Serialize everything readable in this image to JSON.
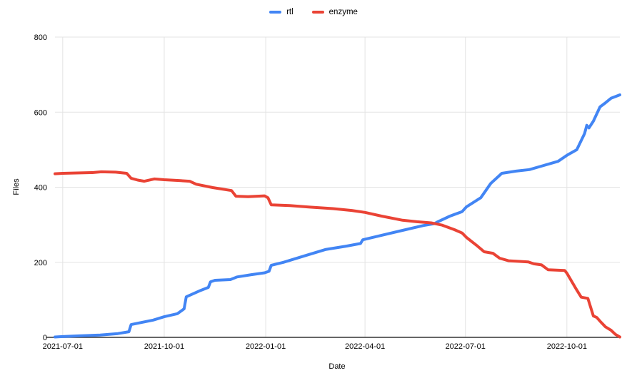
{
  "chart_data": {
    "type": "line",
    "title": "",
    "xlabel": "Date",
    "ylabel": "Files",
    "ylim": [
      0,
      800
    ],
    "y_ticks": [
      0,
      200,
      400,
      600,
      800
    ],
    "x_ticks": [
      "2021-07-01",
      "2021-10-01",
      "2022-01-01",
      "2022-04-01",
      "2022-07-01",
      "2022-10-01"
    ],
    "x_domain": [
      "2021-06-24",
      "2022-11-18"
    ],
    "grid": true,
    "legend_position": "top",
    "colors": {
      "gridline": "#e3e3e3",
      "axis_line": "#333333",
      "text": "#000000",
      "background": "#ffffff"
    },
    "series": [
      {
        "name": "rtl",
        "color": "#4285f4",
        "points": [
          [
            "2021-06-24",
            1
          ],
          [
            "2021-07-01",
            2
          ],
          [
            "2021-07-16",
            4
          ],
          [
            "2021-08-04",
            6
          ],
          [
            "2021-08-20",
            10
          ],
          [
            "2021-08-30",
            15
          ],
          [
            "2021-09-01",
            34
          ],
          [
            "2021-09-11",
            40
          ],
          [
            "2021-09-21",
            46
          ],
          [
            "2021-10-01",
            55
          ],
          [
            "2021-10-13",
            63
          ],
          [
            "2021-10-19",
            76
          ],
          [
            "2021-10-21",
            108
          ],
          [
            "2021-11-03",
            125
          ],
          [
            "2021-11-10",
            133
          ],
          [
            "2021-11-12",
            148
          ],
          [
            "2021-11-16",
            152
          ],
          [
            "2021-11-30",
            154
          ],
          [
            "2021-12-06",
            161
          ],
          [
            "2021-12-19",
            167
          ],
          [
            "2021-12-31",
            172
          ],
          [
            "2022-01-04",
            176
          ],
          [
            "2022-01-06",
            192
          ],
          [
            "2022-01-17",
            200
          ],
          [
            "2022-02-05",
            217
          ],
          [
            "2022-02-24",
            234
          ],
          [
            "2022-03-15",
            243
          ],
          [
            "2022-03-28",
            250
          ],
          [
            "2022-03-30",
            260
          ],
          [
            "2022-04-16",
            272
          ],
          [
            "2022-05-05",
            285
          ],
          [
            "2022-05-24",
            298
          ],
          [
            "2022-06-03",
            303
          ],
          [
            "2022-06-06",
            308
          ],
          [
            "2022-06-17",
            323
          ],
          [
            "2022-06-28",
            335
          ],
          [
            "2022-07-02",
            348
          ],
          [
            "2022-07-15",
            372
          ],
          [
            "2022-07-24",
            410
          ],
          [
            "2022-08-03",
            437
          ],
          [
            "2022-08-16",
            443
          ],
          [
            "2022-08-28",
            447
          ],
          [
            "2022-09-10",
            458
          ],
          [
            "2022-09-23",
            469
          ],
          [
            "2022-10-01",
            485
          ],
          [
            "2022-10-10",
            500
          ],
          [
            "2022-10-17",
            543
          ],
          [
            "2022-10-19",
            565
          ],
          [
            "2022-10-21",
            558
          ],
          [
            "2022-10-25",
            576
          ],
          [
            "2022-10-31",
            614
          ],
          [
            "2022-11-05",
            625
          ],
          [
            "2022-11-10",
            637
          ],
          [
            "2022-11-18",
            646
          ]
        ]
      },
      {
        "name": "enzyme",
        "color": "#ea4335",
        "points": [
          [
            "2021-06-24",
            436
          ],
          [
            "2021-07-01",
            437
          ],
          [
            "2021-07-28",
            439
          ],
          [
            "2021-08-05",
            441
          ],
          [
            "2021-08-18",
            440
          ],
          [
            "2021-08-28",
            437
          ],
          [
            "2021-09-01",
            424
          ],
          [
            "2021-09-07",
            419
          ],
          [
            "2021-09-13",
            416
          ],
          [
            "2021-09-22",
            422
          ],
          [
            "2021-10-01",
            420
          ],
          [
            "2021-10-13",
            418
          ],
          [
            "2021-10-24",
            416
          ],
          [
            "2021-10-30",
            408
          ],
          [
            "2021-11-14",
            399
          ],
          [
            "2021-12-01",
            391
          ],
          [
            "2021-12-05",
            376
          ],
          [
            "2021-12-16",
            375
          ],
          [
            "2021-12-31",
            377
          ],
          [
            "2022-01-03",
            372
          ],
          [
            "2022-01-06",
            353
          ],
          [
            "2022-01-23",
            351
          ],
          [
            "2022-02-10",
            347
          ],
          [
            "2022-03-03",
            343
          ],
          [
            "2022-03-20",
            338
          ],
          [
            "2022-04-01",
            333
          ],
          [
            "2022-04-16",
            323
          ],
          [
            "2022-05-05",
            312
          ],
          [
            "2022-05-18",
            308
          ],
          [
            "2022-05-31",
            305
          ],
          [
            "2022-06-05",
            302
          ],
          [
            "2022-06-10",
            299
          ],
          [
            "2022-06-21",
            287
          ],
          [
            "2022-06-28",
            278
          ],
          [
            "2022-07-02",
            266
          ],
          [
            "2022-07-12",
            243
          ],
          [
            "2022-07-18",
            228
          ],
          [
            "2022-07-26",
            224
          ],
          [
            "2022-08-01",
            211
          ],
          [
            "2022-08-09",
            204
          ],
          [
            "2022-08-27",
            201
          ],
          [
            "2022-09-01",
            196
          ],
          [
            "2022-09-08",
            193
          ],
          [
            "2022-09-14",
            180
          ],
          [
            "2022-09-29",
            178
          ],
          [
            "2022-10-01",
            171
          ],
          [
            "2022-10-10",
            126
          ],
          [
            "2022-10-14",
            107
          ],
          [
            "2022-10-20",
            104
          ],
          [
            "2022-10-25",
            57
          ],
          [
            "2022-10-28",
            53
          ],
          [
            "2022-11-01",
            40
          ],
          [
            "2022-11-05",
            28
          ],
          [
            "2022-11-10",
            19
          ],
          [
            "2022-11-14",
            8
          ],
          [
            "2022-11-18",
            1
          ]
        ]
      }
    ]
  }
}
